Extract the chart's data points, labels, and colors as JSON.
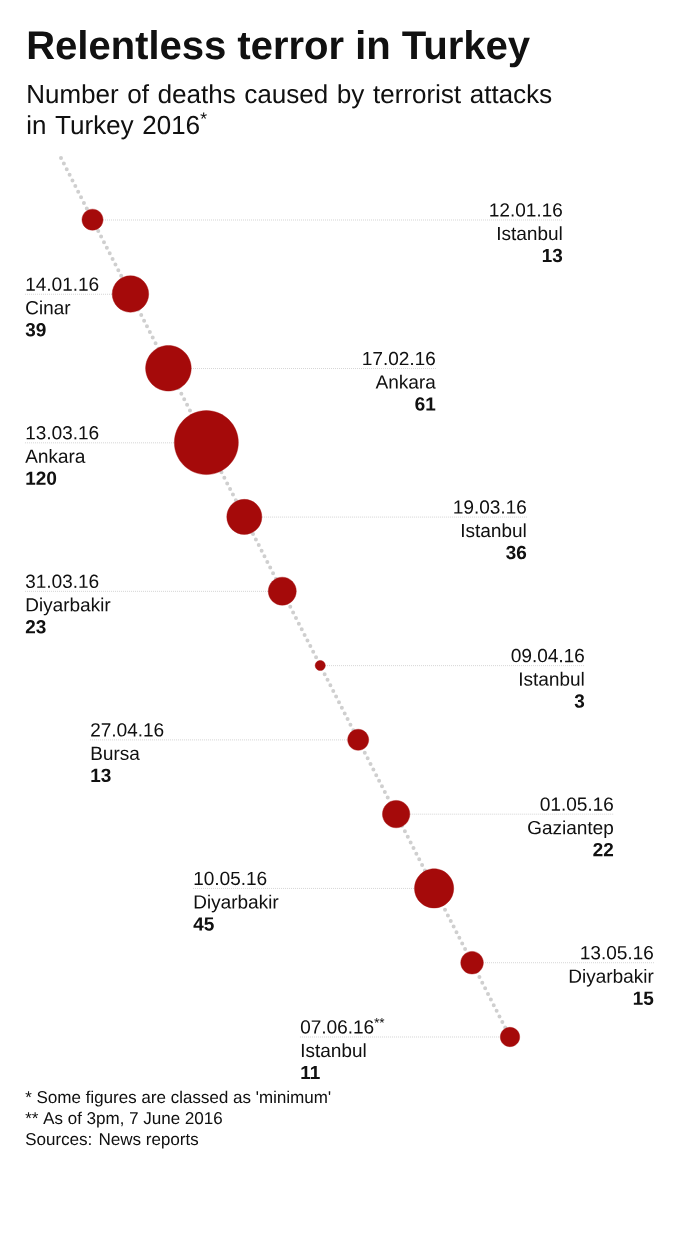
{
  "chart_data": {
    "type": "other",
    "title": "Relentless terror in Turkey",
    "subtitle": "Number of deaths caused by terrorist attacks in Turkey 2016$^{*}$",
    "categories": [
      "12.01.16",
      "14.01.16",
      "17.02.16",
      "13.03.16",
      "19.03.16",
      "31.03.16",
      "09.04.16",
      "27.04.16",
      "01.05.16",
      "10.05.16",
      "13.05.16",
      "07.06.16$^{**}$"
    ],
    "values": [
      13,
      39,
      61,
      120,
      36,
      23,
      3,
      13,
      22,
      45,
      15,
      11
    ],
    "color": "#a50a0a",
    "data_labels": true,
    "annotations": [
      {
        "text": "Istanbul",
        "x": "12.01.16"
      },
      {
        "text": "Cinar",
        "x": "14.01.16"
      },
      {
        "text": "Ankara",
        "x": "17.02.16"
      },
      {
        "text": "Ankara",
        "x": "13.03.16"
      },
      {
        "text": "Istanbul",
        "x": "19.03.16"
      },
      {
        "text": "Diyarbakir",
        "x": "31.03.16"
      },
      {
        "text": "Istanbul",
        "x": "09.04.16"
      },
      {
        "text": "Bursa",
        "x": "27.04.16"
      },
      {
        "text": "Gaziantep",
        "x": "01.05.16"
      },
      {
        "text": "Diyarbakir",
        "x": "10.05.16"
      },
      {
        "text": "Diyarbakir",
        "x": "13.05.16"
      },
      {
        "text": "Istanbul",
        "x": "07.06.16$^{**}$"
      },
      "* Some figures are classed as 'minimum'",
      "** As of 3pm, 7 June 2016",
      "Sources: News reports"
    ]
  }
}
